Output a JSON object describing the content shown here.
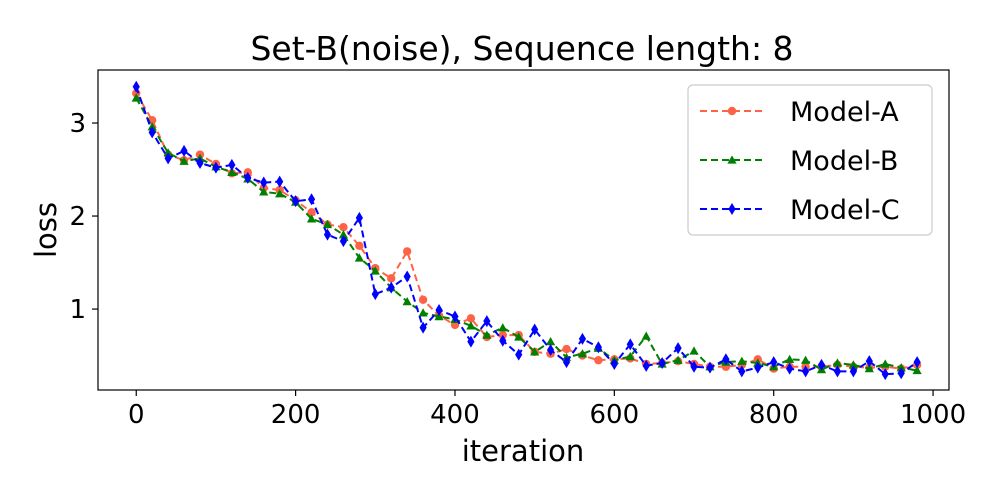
{
  "chart_data": {
    "type": "line",
    "title": "Set-B(noise), Sequence length: 8",
    "xlabel": "iteration",
    "ylabel": "loss",
    "xlim": [
      -48,
      1020
    ],
    "ylim": [
      0.13,
      3.57
    ],
    "xticks": [
      0,
      200,
      400,
      600,
      800,
      1000
    ],
    "yticks": [
      1,
      2,
      3
    ],
    "grid": false,
    "legend_position": "top-right",
    "x": [
      0,
      20,
      40,
      60,
      80,
      100,
      120,
      140,
      160,
      180,
      200,
      220,
      240,
      260,
      280,
      300,
      320,
      340,
      360,
      380,
      400,
      420,
      440,
      460,
      480,
      500,
      520,
      540,
      560,
      580,
      600,
      620,
      640,
      660,
      680,
      700,
      720,
      740,
      760,
      780,
      800,
      820,
      840,
      860,
      880,
      900,
      920,
      940,
      960,
      980
    ],
    "series": [
      {
        "name": "Model-A",
        "color": "#ff6347",
        "marker": "circle",
        "line_style": "dashed",
        "values": [
          3.32,
          3.03,
          2.66,
          2.6,
          2.66,
          2.56,
          2.46,
          2.47,
          2.3,
          2.28,
          2.17,
          2.04,
          1.91,
          1.88,
          1.68,
          1.44,
          1.33,
          1.62,
          1.1,
          0.93,
          0.83,
          0.9,
          0.7,
          0.72,
          0.72,
          0.54,
          0.52,
          0.57,
          0.5,
          0.45,
          0.46,
          0.47,
          0.41,
          0.42,
          0.44,
          0.41,
          0.38,
          0.38,
          0.4,
          0.46,
          0.36,
          0.38,
          0.38,
          0.38,
          0.4,
          0.38,
          0.37,
          0.38,
          0.36,
          0.4
        ]
      },
      {
        "name": "Model-B",
        "color": "#008000",
        "marker": "triangle",
        "line_style": "dashed",
        "values": [
          3.27,
          2.96,
          2.68,
          2.59,
          2.62,
          2.53,
          2.47,
          2.4,
          2.26,
          2.24,
          2.15,
          1.97,
          1.91,
          1.8,
          1.55,
          1.41,
          1.23,
          1.08,
          0.96,
          0.92,
          0.89,
          0.82,
          0.72,
          0.8,
          0.7,
          0.54,
          0.65,
          0.48,
          0.52,
          0.58,
          0.45,
          0.49,
          0.71,
          0.41,
          0.45,
          0.55,
          0.38,
          0.43,
          0.44,
          0.42,
          0.38,
          0.46,
          0.45,
          0.35,
          0.42,
          0.4,
          0.36,
          0.41,
          0.37,
          0.34
        ]
      },
      {
        "name": "Model-C",
        "color": "#0000ff",
        "marker": "diamond",
        "line_style": "dashed",
        "values": [
          3.39,
          2.9,
          2.62,
          2.7,
          2.57,
          2.52,
          2.55,
          2.41,
          2.36,
          2.37,
          2.16,
          2.18,
          1.8,
          1.73,
          1.98,
          1.16,
          1.23,
          1.35,
          0.8,
          0.99,
          0.92,
          0.65,
          0.87,
          0.66,
          0.51,
          0.78,
          0.56,
          0.43,
          0.68,
          0.59,
          0.41,
          0.62,
          0.39,
          0.42,
          0.58,
          0.38,
          0.37,
          0.46,
          0.33,
          0.37,
          0.43,
          0.36,
          0.33,
          0.4,
          0.33,
          0.33,
          0.44,
          0.3,
          0.31,
          0.43
        ]
      }
    ]
  }
}
